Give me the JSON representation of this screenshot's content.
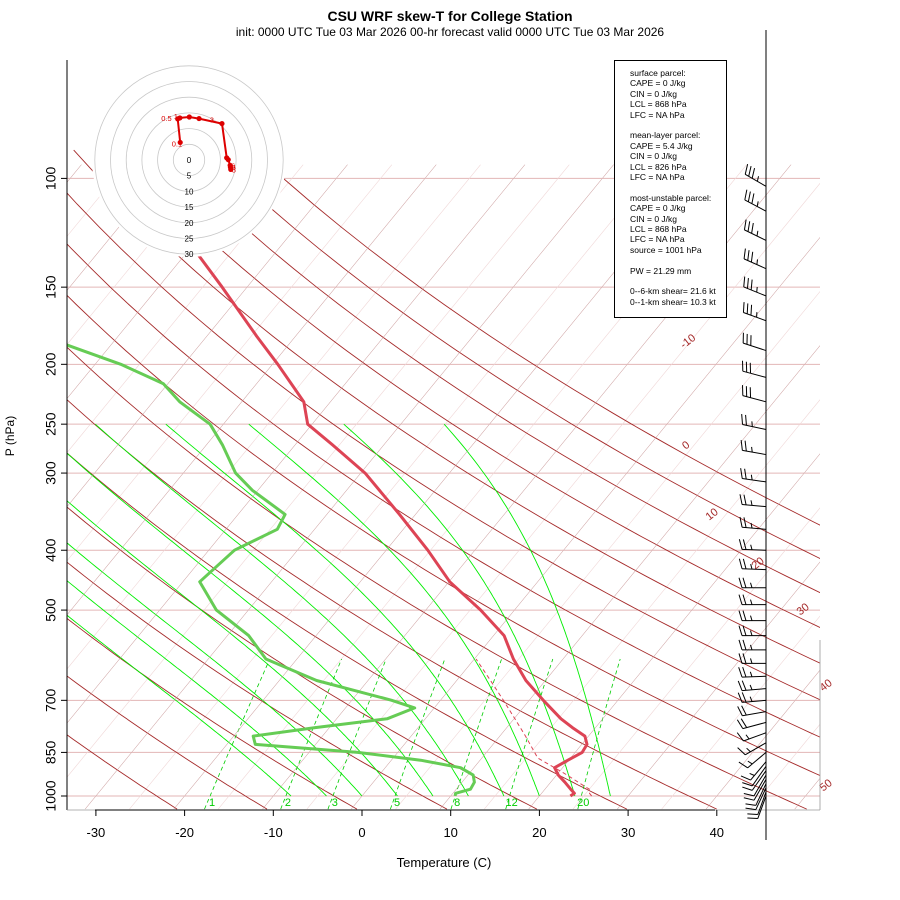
{
  "title": "CSU WRF skew-T for College Station",
  "subtitle": "init: 0000 UTC Tue 03 Mar 2026     00-hr forecast valid 0000 UTC Tue 03 Mar 2026",
  "chart_data": {
    "type": "line",
    "xlabel": "Temperature (C)",
    "ylabel": "P (hPa)",
    "x_ticks": [
      -30,
      -20,
      -10,
      0,
      10,
      20,
      30,
      40
    ],
    "xlim": [
      -33,
      43
    ],
    "ylim": [
      1050,
      100
    ],
    "pressure_ticks": [
      100,
      150,
      200,
      250,
      300,
      400,
      500,
      700,
      850,
      1000
    ],
    "isobars": [
      100,
      150,
      200,
      250,
      300,
      400,
      500,
      700,
      850,
      1000
    ],
    "isotherm_labels": [
      -10,
      0,
      10,
      20,
      30,
      40,
      50
    ],
    "dry_adiabats": [
      250,
      260,
      270,
      280,
      290,
      300,
      310,
      320,
      330,
      340,
      350,
      360,
      370,
      380,
      390,
      400
    ],
    "moist_adiabats": [
      -8,
      -4,
      0,
      4,
      8,
      12,
      16,
      20,
      24,
      28
    ],
    "mixing_ratios": [
      1,
      2,
      3,
      5,
      8,
      12,
      20
    ],
    "series": [
      {
        "name": "temperature",
        "color": "#dd4455",
        "points": [
          {
            "p": 1000,
            "t": 23.5
          },
          {
            "p": 990,
            "t": 23.7
          },
          {
            "p": 975,
            "t": 22.9
          },
          {
            "p": 950,
            "t": 21.6
          },
          {
            "p": 925,
            "t": 20.2
          },
          {
            "p": 900,
            "t": 19.1
          },
          {
            "p": 875,
            "t": 19.9
          },
          {
            "p": 850,
            "t": 20.8
          },
          {
            "p": 825,
            "t": 20.6
          },
          {
            "p": 800,
            "t": 19.6
          },
          {
            "p": 775,
            "t": 17.4
          },
          {
            "p": 750,
            "t": 15.3
          },
          {
            "p": 700,
            "t": 11.6
          },
          {
            "p": 650,
            "t": 7.8
          },
          {
            "p": 600,
            "t": 4.4
          },
          {
            "p": 550,
            "t": 1.2
          },
          {
            "p": 500,
            "t": -3.8
          },
          {
            "p": 450,
            "t": -9.9
          },
          {
            "p": 400,
            "t": -15.3
          },
          {
            "p": 350,
            "t": -21.8
          },
          {
            "p": 300,
            "t": -29.5
          },
          {
            "p": 270,
            "t": -35.8
          },
          {
            "p": 250,
            "t": -40.5
          },
          {
            "p": 230,
            "t": -43.0
          },
          {
            "p": 200,
            "t": -49.4
          },
          {
            "p": 180,
            "t": -54.4
          },
          {
            "p": 150,
            "t": -62.8
          },
          {
            "p": 125,
            "t": -71.4
          },
          {
            "p": 105,
            "t": -79.1
          }
        ]
      },
      {
        "name": "dewpoint",
        "color": "#66cc55",
        "points": [
          {
            "p": 1000,
            "t": 10.5
          },
          {
            "p": 990,
            "t": 10.3
          },
          {
            "p": 975,
            "t": 11.6
          },
          {
            "p": 950,
            "t": 11.4
          },
          {
            "p": 925,
            "t": 10.6
          },
          {
            "p": 900,
            "t": 8.5
          },
          {
            "p": 875,
            "t": 3.3
          },
          {
            "p": 850,
            "t": -4.5
          },
          {
            "p": 825,
            "t": -16.8
          },
          {
            "p": 800,
            "t": -17.8
          },
          {
            "p": 775,
            "t": -11.6
          },
          {
            "p": 750,
            "t": -4.3
          },
          {
            "p": 720,
            "t": -2.2
          },
          {
            "p": 700,
            "t": -5.5
          },
          {
            "p": 650,
            "t": -15.8
          },
          {
            "p": 600,
            "t": -23.5
          },
          {
            "p": 550,
            "t": -27.6
          },
          {
            "p": 500,
            "t": -33.6
          },
          {
            "p": 450,
            "t": -38.1
          },
          {
            "p": 400,
            "t": -37.1
          },
          {
            "p": 370,
            "t": -34.2
          },
          {
            "p": 350,
            "t": -34.7
          },
          {
            "p": 320,
            "t": -40.6
          },
          {
            "p": 300,
            "t": -44.1
          },
          {
            "p": 270,
            "t": -48.2
          },
          {
            "p": 250,
            "t": -51.5
          },
          {
            "p": 230,
            "t": -57.0
          },
          {
            "p": 215,
            "t": -60.5
          },
          {
            "p": 200,
            "t": -67.1
          },
          {
            "p": 185,
            "t": -75.6
          },
          {
            "p": 175,
            "t": -77.2
          }
        ]
      },
      {
        "name": "parcel",
        "color": "#dd4455",
        "dashed": true,
        "points": [
          {
            "p": 1000,
            "t": 25.9
          },
          {
            "p": 990,
            "t": 25.4
          },
          {
            "p": 975,
            "t": 25.0
          },
          {
            "p": 950,
            "t": 23.1
          },
          {
            "p": 925,
            "t": 21.2
          },
          {
            "p": 900,
            "t": 19.1
          },
          {
            "p": 868,
            "t": 16.3
          },
          {
            "p": 800,
            "t": 12.9
          },
          {
            "p": 750,
            "t": 10.1
          },
          {
            "p": 700,
            "t": 7.1
          },
          {
            "p": 650,
            "t": 3.8
          },
          {
            "p": 600,
            "t": 0.2
          }
        ]
      }
    ],
    "hodograph": {
      "ring_labels": [
        "0",
        "5",
        "10",
        "15",
        "20",
        "25",
        "30"
      ],
      "color": "#dd0000",
      "points": [
        {
          "u": 13.3,
          "v": -3.0,
          "label": "8"
        },
        {
          "u": 13.2,
          "v": -2.3,
          "label": "5"
        },
        {
          "u": 13.1,
          "v": -1.7,
          "label": "6"
        },
        {
          "u": 12.5,
          "v": 0.1,
          "label": ""
        },
        {
          "u": 12.0,
          "v": 0.7,
          "label": ""
        },
        {
          "u": 10.5,
          "v": 11.6,
          "label": "3"
        },
        {
          "u": 3.2,
          "v": 13.2,
          "label": ""
        },
        {
          "u": 0.1,
          "v": 13.7,
          "label": ""
        },
        {
          "u": -2.9,
          "v": 13.4,
          "label": "1"
        },
        {
          "u": -3.6,
          "v": 13.1,
          "label": "0.5"
        },
        {
          "u": -2.8,
          "v": 5.6,
          "label": "0.1"
        }
      ]
    },
    "wind_barbs": [
      {
        "p": 1000,
        "dir": 200,
        "kt": 10
      },
      {
        "p": 985,
        "dir": 200,
        "kt": 10
      },
      {
        "p": 970,
        "dir": 205,
        "kt": 10
      },
      {
        "p": 955,
        "dir": 205,
        "kt": 10
      },
      {
        "p": 940,
        "dir": 210,
        "kt": 10
      },
      {
        "p": 925,
        "dir": 210,
        "kt": 10
      },
      {
        "p": 910,
        "dir": 215,
        "kt": 10
      },
      {
        "p": 895,
        "dir": 215,
        "kt": 10
      },
      {
        "p": 880,
        "dir": 220,
        "kt": 15
      },
      {
        "p": 850,
        "dir": 230,
        "kt": 15
      },
      {
        "p": 820,
        "dir": 240,
        "kt": 15
      },
      {
        "p": 790,
        "dir": 250,
        "kt": 15
      },
      {
        "p": 760,
        "dir": 255,
        "kt": 20
      },
      {
        "p": 730,
        "dir": 260,
        "kt": 20
      },
      {
        "p": 700,
        "dir": 265,
        "kt": 25
      },
      {
        "p": 670,
        "dir": 265,
        "kt": 25
      },
      {
        "p": 640,
        "dir": 268,
        "kt": 25
      },
      {
        "p": 610,
        "dir": 270,
        "kt": 25
      },
      {
        "p": 580,
        "dir": 270,
        "kt": 25
      },
      {
        "p": 550,
        "dir": 270,
        "kt": 25
      },
      {
        "p": 520,
        "dir": 270,
        "kt": 25
      },
      {
        "p": 490,
        "dir": 270,
        "kt": 25
      },
      {
        "p": 460,
        "dir": 270,
        "kt": 25
      },
      {
        "p": 430,
        "dir": 272,
        "kt": 25
      },
      {
        "p": 400,
        "dir": 272,
        "kt": 25
      },
      {
        "p": 370,
        "dir": 275,
        "kt": 25
      },
      {
        "p": 340,
        "dir": 275,
        "kt": 25
      },
      {
        "p": 310,
        "dir": 278,
        "kt": 25
      },
      {
        "p": 280,
        "dir": 280,
        "kt": 25
      },
      {
        "p": 255,
        "dir": 282,
        "kt": 25
      },
      {
        "p": 230,
        "dir": 285,
        "kt": 30
      },
      {
        "p": 210,
        "dir": 285,
        "kt": 30
      },
      {
        "p": 190,
        "dir": 288,
        "kt": 30
      },
      {
        "p": 170,
        "dir": 290,
        "kt": 35
      },
      {
        "p": 155,
        "dir": 292,
        "kt": 35
      },
      {
        "p": 140,
        "dir": 294,
        "kt": 35
      },
      {
        "p": 126,
        "dir": 296,
        "kt": 35
      },
      {
        "p": 113,
        "dir": 298,
        "kt": 35
      },
      {
        "p": 103,
        "dir": 300,
        "kt": 35
      }
    ]
  },
  "info_box": {
    "surface": {
      "title": "surface parcel:",
      "cape": "CAPE = 0 J/kg",
      "cin": "CIN = 0 J/kg",
      "lcl": "LCL = 868 hPa",
      "lfc": "LFC = NA hPa"
    },
    "mean_layer": {
      "title": "mean-layer parcel:",
      "cape": "CAPE = 5.4 J/kg",
      "cin": "CIN = 0 J/kg",
      "lcl": "LCL = 826 hPa",
      "lfc": "LFC = NA hPa"
    },
    "most_unstable": {
      "title": "most-unstable parcel:",
      "cape": "CAPE = 0 J/kg",
      "cin": "CIN = 0 J/kg",
      "lcl": "LCL = 868 hPa",
      "lfc": "LFC = NA hPa",
      "source": "source = 1001 hPa"
    },
    "pw": "PW =  21.29 mm",
    "shear_0_6": "0--6-km shear= 21.6 kt",
    "shear_0_1": "0--1-km shear= 10.3 kt"
  },
  "colors": {
    "isotherm": "#a52a2a",
    "isobar": "#e3b6b6",
    "dry_adiabat": "#a52a2a",
    "moist_adiabat": "#00ee00",
    "mixing_ratio": "#00cc00",
    "temperature": "#dd4455",
    "dewpoint": "#66cc55",
    "hodograph": "#dd0000"
  }
}
